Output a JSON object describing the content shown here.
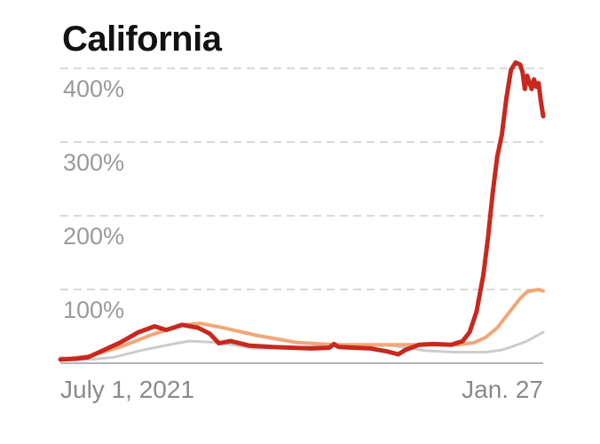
{
  "chart_data": {
    "type": "line",
    "title": "California",
    "xlabel": "",
    "ylabel": "",
    "x_range": [
      "2021-07-01",
      "2022-01-27"
    ],
    "ylim": [
      0,
      420
    ],
    "y_ticks": [
      {
        "value": 100,
        "label": "100%"
      },
      {
        "value": 200,
        "label": "200%"
      },
      {
        "value": 300,
        "label": "300%"
      },
      {
        "value": 400,
        "label": "400%"
      }
    ],
    "x_ticks": [
      {
        "date": "2021-07-01",
        "label": "July 1, 2021"
      },
      {
        "date": "2022-01-27",
        "label": "Jan. 27"
      }
    ],
    "grid": true,
    "legend": "none",
    "series": [
      {
        "color": "#cccccc",
        "x": [
          "2021-07-01",
          "2021-07-14",
          "2021-07-24",
          "2021-08-06",
          "2021-08-19",
          "2021-08-26",
          "2021-09-08",
          "2021-09-23",
          "2021-10-16",
          "2021-11-08",
          "2021-11-22",
          "2021-12-07",
          "2021-12-20",
          "2022-01-02",
          "2022-01-09",
          "2022-01-14",
          "2022-01-20",
          "2022-01-27"
        ],
        "y": [
          8,
          5,
          8,
          18,
          26,
          30,
          28,
          20,
          22,
          24,
          24,
          17,
          15,
          15,
          18,
          23,
          30,
          42
        ]
      },
      {
        "color": "#f0a778",
        "x": [
          "2021-07-01",
          "2021-07-14",
          "2021-07-27",
          "2021-08-11",
          "2021-08-24",
          "2021-08-31",
          "2021-09-10",
          "2021-09-24",
          "2021-10-12",
          "2021-10-28",
          "2021-11-22",
          "2021-12-08",
          "2021-12-21",
          "2021-12-28",
          "2022-01-02",
          "2022-01-07",
          "2022-01-12",
          "2022-01-17",
          "2022-01-20",
          "2022-01-25",
          "2022-01-27"
        ],
        "y": [
          5,
          10,
          22,
          40,
          52,
          54,
          48,
          38,
          28,
          25,
          25,
          25,
          25,
          28,
          35,
          48,
          68,
          88,
          97,
          100,
          98
        ]
      },
      {
        "color": "#c8281e",
        "x": [
          "2021-07-01",
          "2021-07-08",
          "2021-07-13",
          "2021-07-20",
          "2021-07-27",
          "2021-08-04",
          "2021-08-11",
          "2021-08-16",
          "2021-08-23",
          "2021-08-30",
          "2021-09-04",
          "2021-09-08",
          "2021-09-13",
          "2021-09-21",
          "2021-10-01",
          "2021-10-10",
          "2021-10-18",
          "2021-10-26",
          "2021-10-28",
          "2021-10-30",
          "2021-11-06",
          "2021-11-13",
          "2021-11-20",
          "2021-11-25",
          "2021-11-28",
          "2021-12-04",
          "2021-12-10",
          "2021-12-18",
          "2021-12-23",
          "2021-12-26",
          "2021-12-29",
          "2022-01-01",
          "2022-01-03",
          "2022-01-05",
          "2022-01-07",
          "2022-01-09",
          "2022-01-11",
          "2022-01-13",
          "2022-01-15",
          "2022-01-17",
          "2022-01-18",
          "2022-01-19",
          "2022-01-20",
          "2022-01-22",
          "2022-01-23",
          "2022-01-24",
          "2022-01-25",
          "2022-01-26",
          "2022-01-27"
        ],
        "y": [
          5,
          6,
          8,
          18,
          28,
          42,
          50,
          45,
          52,
          48,
          40,
          27,
          30,
          24,
          22,
          21,
          20,
          21,
          26,
          22,
          21,
          20,
          16,
          12,
          18,
          25,
          26,
          25,
          30,
          42,
          70,
          120,
          170,
          230,
          280,
          310,
          360,
          398,
          408,
          405,
          395,
          372,
          390,
          372,
          385,
          375,
          380,
          355,
          335
        ]
      }
    ]
  }
}
